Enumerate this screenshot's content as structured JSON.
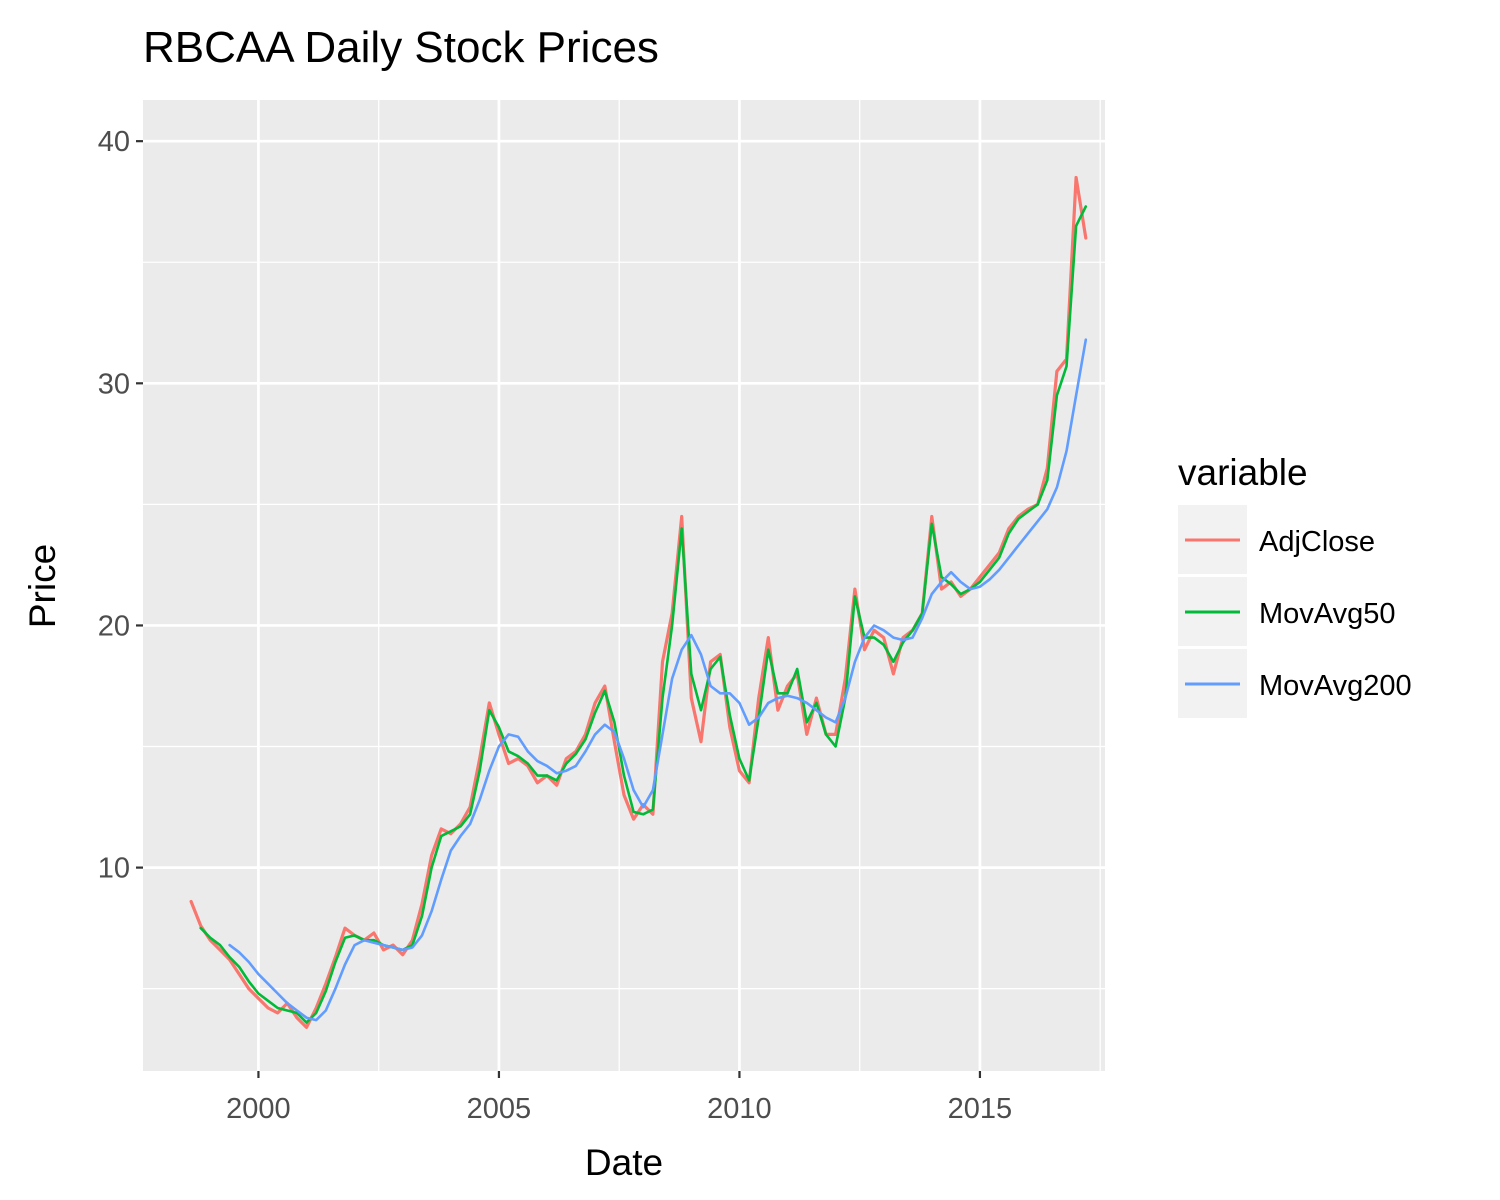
{
  "chart_data": {
    "type": "line",
    "title": "RBCAA Daily Stock Prices",
    "xlabel": "Date",
    "ylabel": "Price",
    "xlim": [
      1997.6,
      2017.6
    ],
    "ylim": [
      1.6,
      41.7
    ],
    "x_ticks": [
      2000,
      2005,
      2010,
      2015
    ],
    "x_tick_labels": [
      "2000",
      "2005",
      "2010",
      "2015"
    ],
    "y_ticks": [
      10,
      20,
      30,
      40
    ],
    "y_tick_labels": [
      "10",
      "20",
      "30",
      "40"
    ],
    "grid": true,
    "legend": {
      "title": "variable",
      "position": "right"
    },
    "series": [
      {
        "name": "AdjClose",
        "color": "#F8766D",
        "x": [
          1998.6,
          1998.8,
          1999.0,
          1999.2,
          1999.4,
          1999.6,
          1999.8,
          2000.0,
          2000.2,
          2000.4,
          2000.6,
          2000.8,
          2001.0,
          2001.2,
          2001.4,
          2001.6,
          2001.8,
          2002.0,
          2002.2,
          2002.4,
          2002.6,
          2002.8,
          2003.0,
          2003.2,
          2003.4,
          2003.6,
          2003.8,
          2004.0,
          2004.2,
          2004.4,
          2004.6,
          2004.8,
          2005.0,
          2005.2,
          2005.4,
          2005.6,
          2005.8,
          2006.0,
          2006.2,
          2006.4,
          2006.6,
          2006.8,
          2007.0,
          2007.2,
          2007.4,
          2007.6,
          2007.8,
          2008.0,
          2008.2,
          2008.4,
          2008.6,
          2008.8,
          2009.0,
          2009.2,
          2009.4,
          2009.6,
          2009.8,
          2010.0,
          2010.2,
          2010.4,
          2010.6,
          2010.8,
          2011.0,
          2011.2,
          2011.4,
          2011.6,
          2011.8,
          2012.0,
          2012.2,
          2012.4,
          2012.6,
          2012.8,
          2013.0,
          2013.2,
          2013.4,
          2013.6,
          2013.8,
          2014.0,
          2014.2,
          2014.4,
          2014.6,
          2014.8,
          2015.0,
          2015.2,
          2015.4,
          2015.6,
          2015.8,
          2016.0,
          2016.2,
          2016.4,
          2016.6,
          2016.8,
          2017.0,
          2017.2
        ],
        "values": [
          8.6,
          7.6,
          7.0,
          6.6,
          6.2,
          5.6,
          5.0,
          4.6,
          4.2,
          4.0,
          4.4,
          3.8,
          3.4,
          4.2,
          5.2,
          6.3,
          7.5,
          7.2,
          7.0,
          7.3,
          6.6,
          6.8,
          6.4,
          7.0,
          8.5,
          10.5,
          11.6,
          11.4,
          11.8,
          12.5,
          14.5,
          16.8,
          15.5,
          14.3,
          14.5,
          14.2,
          13.5,
          13.8,
          13.4,
          14.5,
          14.8,
          15.5,
          16.8,
          17.5,
          15.2,
          13.0,
          12.0,
          12.6,
          12.2,
          18.5,
          20.5,
          24.5,
          17.0,
          15.2,
          18.5,
          18.8,
          15.8,
          14.0,
          13.5,
          17.0,
          19.5,
          16.5,
          17.5,
          18.0,
          15.5,
          17.0,
          15.5,
          15.5,
          17.8,
          21.5,
          19.0,
          19.8,
          19.5,
          18.0,
          19.5,
          19.8,
          20.5,
          24.5,
          21.5,
          21.8,
          21.2,
          21.5,
          22.0,
          22.5,
          23.0,
          24.0,
          24.5,
          24.8,
          25.0,
          26.5,
          30.5,
          31.0,
          38.5,
          36.0
        ]
      },
      {
        "name": "MovAvg50",
        "color": "#00BA38",
        "x": [
          1998.8,
          1999.0,
          1999.2,
          1999.4,
          1999.6,
          1999.8,
          2000.0,
          2000.2,
          2000.4,
          2000.6,
          2000.8,
          2001.0,
          2001.2,
          2001.4,
          2001.6,
          2001.8,
          2002.0,
          2002.2,
          2002.4,
          2002.6,
          2002.8,
          2003.0,
          2003.2,
          2003.4,
          2003.6,
          2003.8,
          2004.0,
          2004.2,
          2004.4,
          2004.6,
          2004.8,
          2005.0,
          2005.2,
          2005.4,
          2005.6,
          2005.8,
          2006.0,
          2006.2,
          2006.4,
          2006.6,
          2006.8,
          2007.0,
          2007.2,
          2007.4,
          2007.6,
          2007.8,
          2008.0,
          2008.2,
          2008.4,
          2008.6,
          2008.8,
          2009.0,
          2009.2,
          2009.4,
          2009.6,
          2009.8,
          2010.0,
          2010.2,
          2010.4,
          2010.6,
          2010.8,
          2011.0,
          2011.2,
          2011.4,
          2011.6,
          2011.8,
          2012.0,
          2012.2,
          2012.4,
          2012.6,
          2012.8,
          2013.0,
          2013.2,
          2013.4,
          2013.6,
          2013.8,
          2014.0,
          2014.2,
          2014.4,
          2014.6,
          2014.8,
          2015.0,
          2015.2,
          2015.4,
          2015.6,
          2015.8,
          2016.0,
          2016.2,
          2016.4,
          2016.6,
          2016.8,
          2017.0,
          2017.2
        ],
        "values": [
          7.5,
          7.1,
          6.8,
          6.3,
          5.9,
          5.3,
          4.8,
          4.5,
          4.2,
          4.1,
          4.0,
          3.6,
          4.0,
          4.9,
          6.1,
          7.1,
          7.2,
          7.0,
          7.0,
          6.8,
          6.7,
          6.6,
          6.8,
          8.0,
          10.0,
          11.3,
          11.5,
          11.7,
          12.2,
          14.0,
          16.5,
          15.8,
          14.8,
          14.6,
          14.3,
          13.8,
          13.8,
          13.6,
          14.3,
          14.7,
          15.3,
          16.4,
          17.3,
          16.0,
          13.8,
          12.3,
          12.2,
          12.4,
          17.0,
          20.0,
          24.0,
          18.0,
          16.5,
          18.2,
          18.7,
          16.3,
          14.5,
          13.6,
          16.2,
          19.0,
          17.2,
          17.2,
          18.2,
          16.0,
          16.8,
          15.5,
          15.0,
          17.0,
          21.2,
          19.5,
          19.5,
          19.2,
          18.5,
          19.3,
          19.8,
          20.5,
          24.2,
          22.0,
          21.7,
          21.3,
          21.5,
          21.8,
          22.3,
          22.8,
          23.8,
          24.4,
          24.7,
          25.0,
          26.0,
          29.5,
          30.7,
          36.5,
          37.3
        ]
      },
      {
        "name": "MovAvg200",
        "color": "#619CFF",
        "x": [
          1999.4,
          1999.6,
          1999.8,
          2000.0,
          2000.2,
          2000.4,
          2000.6,
          2000.8,
          2001.0,
          2001.2,
          2001.4,
          2001.6,
          2001.8,
          2002.0,
          2002.2,
          2002.4,
          2002.6,
          2002.8,
          2003.0,
          2003.2,
          2003.4,
          2003.6,
          2003.8,
          2004.0,
          2004.2,
          2004.4,
          2004.6,
          2004.8,
          2005.0,
          2005.2,
          2005.4,
          2005.6,
          2005.8,
          2006.0,
          2006.2,
          2006.4,
          2006.6,
          2006.8,
          2007.0,
          2007.2,
          2007.4,
          2007.6,
          2007.8,
          2008.0,
          2008.2,
          2008.4,
          2008.6,
          2008.8,
          2009.0,
          2009.2,
          2009.4,
          2009.6,
          2009.8,
          2010.0,
          2010.2,
          2010.4,
          2010.6,
          2010.8,
          2011.0,
          2011.2,
          2011.4,
          2011.6,
          2011.8,
          2012.0,
          2012.2,
          2012.4,
          2012.6,
          2012.8,
          2013.0,
          2013.2,
          2013.4,
          2013.6,
          2013.8,
          2014.0,
          2014.2,
          2014.4,
          2014.6,
          2014.8,
          2015.0,
          2015.2,
          2015.4,
          2015.6,
          2015.8,
          2016.0,
          2016.2,
          2016.4,
          2016.6,
          2016.8,
          2017.0,
          2017.2
        ],
        "values": [
          6.8,
          6.5,
          6.1,
          5.6,
          5.2,
          4.8,
          4.4,
          4.1,
          3.8,
          3.7,
          4.1,
          5.0,
          6.0,
          6.8,
          7.0,
          6.9,
          6.8,
          6.7,
          6.6,
          6.7,
          7.2,
          8.2,
          9.5,
          10.7,
          11.3,
          11.8,
          12.8,
          14.0,
          15.0,
          15.5,
          15.4,
          14.8,
          14.4,
          14.2,
          13.9,
          14.0,
          14.2,
          14.8,
          15.5,
          15.9,
          15.6,
          14.5,
          13.2,
          12.5,
          13.2,
          15.5,
          17.8,
          19.0,
          19.6,
          18.8,
          17.5,
          17.2,
          17.2,
          16.8,
          15.9,
          16.2,
          16.8,
          17.0,
          17.1,
          17.0,
          16.8,
          16.5,
          16.2,
          16.0,
          17.0,
          18.5,
          19.5,
          20.0,
          19.8,
          19.5,
          19.4,
          19.5,
          20.3,
          21.3,
          21.8,
          22.2,
          21.8,
          21.5,
          21.6,
          21.9,
          22.3,
          22.8,
          23.3,
          23.8,
          24.3,
          24.8,
          25.7,
          27.2,
          29.5,
          31.8
        ]
      }
    ]
  }
}
